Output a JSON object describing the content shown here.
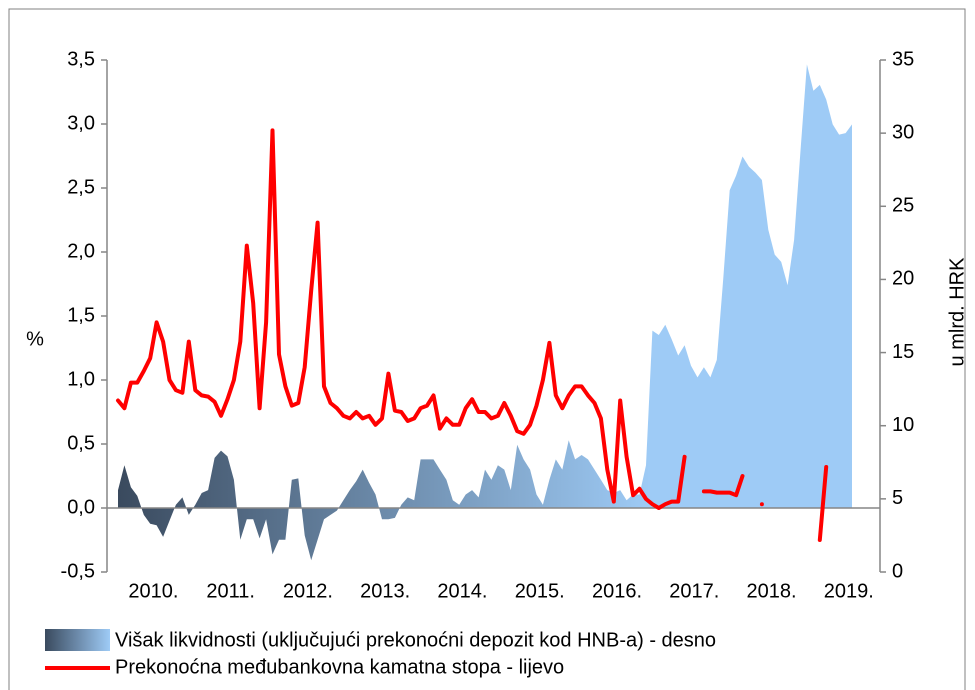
{
  "chart_data": {
    "type": "line",
    "ylabel": "%",
    "y2label": "u mlrd. HRK",
    "ylim": [
      -0.5,
      3.5
    ],
    "yticks": [
      {
        "value": -0.5,
        "label": "-0,5"
      },
      {
        "value": 0,
        "label": "0,0"
      },
      {
        "value": 0.5,
        "label": "0,5"
      },
      {
        "value": 1,
        "label": "1,0"
      },
      {
        "value": 1.5,
        "label": "1,5"
      },
      {
        "value": 2,
        "label": "2,0"
      },
      {
        "value": 2.5,
        "label": "2,5"
      },
      {
        "value": 3,
        "label": "3,0"
      },
      {
        "value": 3.5,
        "label": "3,5"
      }
    ],
    "y2lim": [
      0,
      35
    ],
    "y2ticks": [
      0,
      5,
      10,
      15,
      20,
      25,
      30,
      35
    ],
    "grid": false,
    "legend": "bottom",
    "categories": [
      null,
      null,
      null,
      null,
      null,
      null,
      "2010.",
      null,
      null,
      null,
      null,
      null,
      null,
      null,
      null,
      null,
      null,
      null,
      "2011.",
      null,
      null,
      null,
      null,
      null,
      null,
      null,
      null,
      null,
      null,
      null,
      "2012.",
      null,
      null,
      null,
      null,
      null,
      null,
      null,
      null,
      null,
      null,
      null,
      "2013.",
      null,
      null,
      null,
      null,
      null,
      null,
      null,
      null,
      null,
      null,
      null,
      "2014.",
      null,
      null,
      null,
      null,
      null,
      null,
      null,
      null,
      null,
      null,
      null,
      "2015.",
      null,
      null,
      null,
      null,
      null,
      null,
      null,
      null,
      null,
      null,
      null,
      "2016.",
      null,
      null,
      null,
      null,
      null,
      null,
      null,
      null,
      null,
      null,
      null,
      "2017.",
      null,
      null,
      null,
      null,
      null,
      null,
      null,
      null,
      null,
      null,
      null,
      "2018.",
      null,
      null,
      null,
      null,
      null,
      null,
      null,
      null,
      null,
      null,
      null,
      "2019."
    ],
    "series": [
      {
        "name": "Višak likvidnosti (uključujući prekonoćni depozit kod HNB-a) - desno",
        "type": "area",
        "axis": "y2",
        "colors": [
          "#3a4a5e",
          "#9ecbf6"
        ],
        "values": [
          5.6,
          7.3,
          5.8,
          5.2,
          3.9,
          3.3,
          3.2,
          2.4,
          3.5,
          4.6,
          5.1,
          3.9,
          4.6,
          5.4,
          5.6,
          7.8,
          8.3,
          7.9,
          6.3,
          2.2,
          3.6,
          3.6,
          2.3,
          3.6,
          1.2,
          2.2,
          2.2,
          6.3,
          6.4,
          2.5,
          0.8,
          2.2,
          3.6,
          3.9,
          4.2,
          4.9,
          5.6,
          6.2,
          7.0,
          6.1,
          5.3,
          3.6,
          3.6,
          3.7,
          4.6,
          5.1,
          4.9,
          7.7,
          7.7,
          7.7,
          7.0,
          6.3,
          4.9,
          4.6,
          5.3,
          5.6,
          5.1,
          7.0,
          6.3,
          7.3,
          7.0,
          5.6,
          8.7,
          7.7,
          7.0,
          5.3,
          4.6,
          6.3,
          7.7,
          7.0,
          9.0,
          7.7,
          8.0,
          7.7,
          7.0,
          6.3,
          5.6,
          5.4,
          5.6,
          4.9,
          5.3,
          5.3,
          7.3,
          16.5,
          16.2,
          16.9,
          15.9,
          14.8,
          15.5,
          14.1,
          13.3,
          14.0,
          13.3,
          14.5,
          20.0,
          26.1,
          27.1,
          28.4,
          27.7,
          27.3,
          26.8,
          23.4,
          21.7,
          21.2,
          19.6,
          22.7,
          28.8,
          34.7,
          32.9,
          33.3,
          32.3,
          30.6,
          29.9,
          30.0,
          30.6
        ]
      },
      {
        "name": "Prekonoćna međubankovna kamatna stopa - lijevo",
        "color": "#ff0000",
        "values": [
          0.84,
          0.78,
          0.98,
          0.98,
          1.07,
          1.17,
          1.45,
          1.3,
          1.0,
          0.92,
          0.9,
          1.3,
          0.92,
          0.88,
          0.87,
          0.83,
          0.72,
          0.85,
          1.0,
          1.3,
          2.05,
          1.6,
          0.78,
          1.45,
          2.95,
          1.2,
          0.95,
          0.8,
          0.82,
          1.1,
          1.7,
          2.23,
          0.95,
          0.82,
          0.78,
          0.72,
          0.7,
          0.75,
          0.7,
          0.72,
          0.65,
          0.7,
          1.05,
          0.76,
          0.75,
          0.68,
          0.7,
          0.78,
          0.8,
          0.88,
          0.62,
          0.7,
          0.65,
          0.65,
          0.78,
          0.85,
          0.75,
          0.75,
          0.7,
          0.72,
          0.82,
          0.72,
          0.6,
          0.58,
          0.65,
          0.8,
          1.0,
          1.29,
          0.88,
          0.78,
          0.88,
          0.95,
          0.95,
          0.88,
          0.82,
          0.7,
          0.3,
          0.05,
          0.84,
          0.4,
          0.1,
          0.15,
          0.07,
          0.03,
          0.0,
          0.03,
          0.05,
          0.05,
          0.4,
          null,
          null,
          0.13,
          0.13,
          0.12,
          0.12,
          0.12,
          0.1,
          0.25,
          null,
          null,
          0.03,
          null,
          null,
          null,
          null,
          null,
          null,
          null,
          null,
          -0.25,
          0.32,
          null,
          null,
          null,
          null
        ]
      }
    ]
  }
}
